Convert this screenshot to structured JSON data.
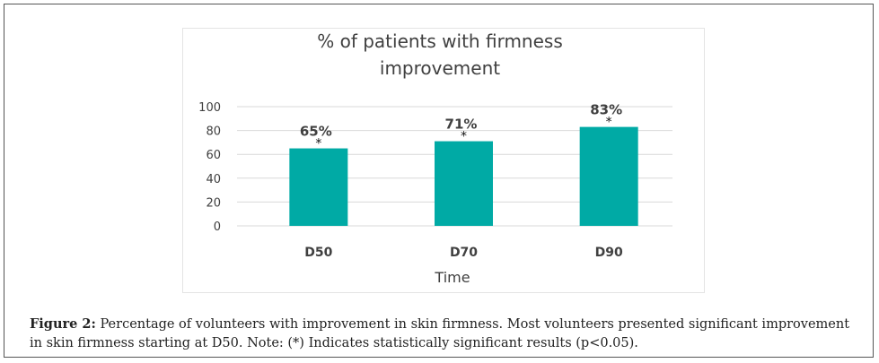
{
  "colors": {
    "bar": "#00aaa5",
    "grid": "#d9d9d9",
    "text": "#404040"
  },
  "chart_data": {
    "type": "bar",
    "title_lines": [
      "% of patients with firmness",
      "improvement"
    ],
    "xlabel": "Time",
    "ylabel": "",
    "categories": [
      "D50",
      "D70",
      "D90"
    ],
    "values": [
      65,
      71,
      83
    ],
    "data_labels": [
      "65%",
      "71%",
      "83%"
    ],
    "significance_marker": "*",
    "y_ticks": [
      "100",
      "80",
      "60",
      "40",
      "20",
      "0"
    ],
    "ylim": [
      0,
      100
    ],
    "grid": true,
    "legend": "none"
  },
  "caption": {
    "label": "Figure 2:",
    "text": " Percentage of volunteers with improvement in skin firmness. Most volunteers presented significant improvement in skin firmness starting at D50. Note: (*) Indicates statistically significant results (p<0.05)."
  }
}
